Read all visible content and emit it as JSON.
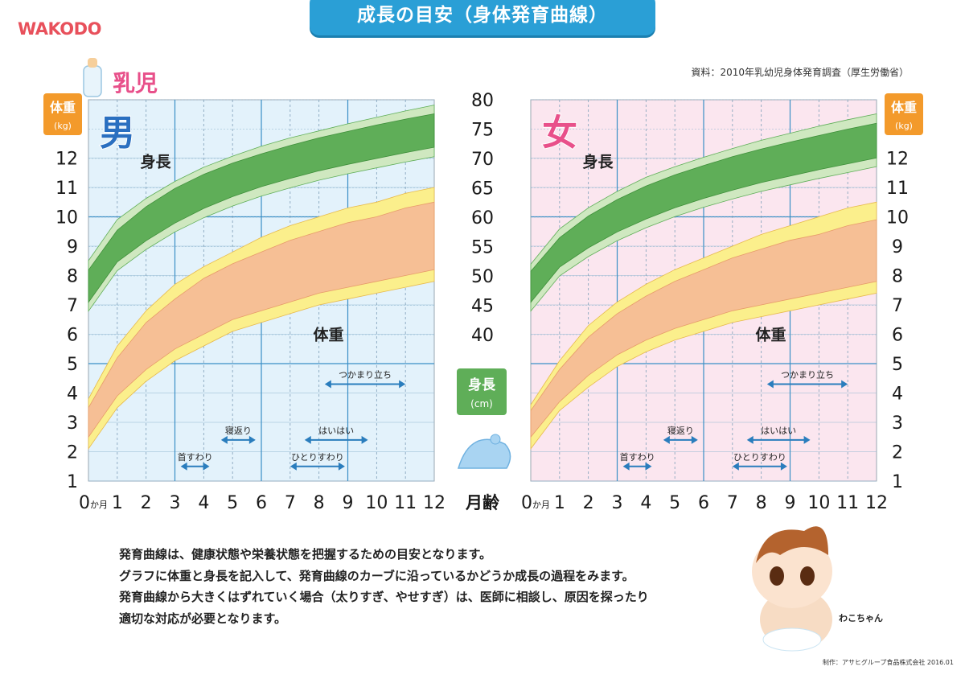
{
  "header": {
    "logo": "WAKODO",
    "title": "成長の目安（身体発育曲線）",
    "source": "資料：2010年乳幼児身体発育調査（厚生労働省）"
  },
  "section_label": "乳児",
  "axes": {
    "weight_title": "体重",
    "weight_unit": "(kg)",
    "height_title": "身長",
    "height_unit": "(cm)",
    "month_title": "月齢",
    "month_zero_suffix": "か月"
  },
  "colors": {
    "boy_bg": "#e3f2fb",
    "girl_bg": "#fbe6ef",
    "height_outer": "#cfe8c0",
    "height_inner": "#5fae58",
    "weight_outer": "#fbef8c",
    "weight_inner": "#f6bf95",
    "grid_major": "#3a8fc6",
    "milestone_arrow": "#2a7dbd"
  },
  "chart_data": [
    {
      "type": "area",
      "panel": "男",
      "x": [
        0,
        1,
        2,
        3,
        4,
        5,
        6,
        7,
        8,
        9,
        10,
        11,
        12
      ],
      "xlim": [
        0,
        12
      ],
      "xticks": [
        "0",
        "1",
        "2",
        "3",
        "4",
        "5",
        "6",
        "7",
        "8",
        "9",
        "10",
        "11",
        "12"
      ],
      "height_axis": {
        "label": "身長",
        "unit": "cm",
        "ylim": [
          40,
          80
        ],
        "ticks": [
          40,
          45,
          50,
          55,
          60,
          65,
          70,
          75,
          80
        ]
      },
      "weight_axis": {
        "label": "体重",
        "unit": "kg",
        "ylim": [
          1,
          13
        ],
        "ticks": [
          1,
          2,
          3,
          4,
          5,
          6,
          7,
          8,
          9,
          10,
          11,
          12
        ]
      },
      "series": [
        {
          "name": "身長",
          "p3": [
            44.0,
            50.9,
            54.5,
            57.5,
            59.9,
            61.9,
            63.6,
            65.0,
            66.3,
            67.4,
            68.4,
            69.4,
            70.3
          ],
          "p10": [
            45.5,
            52.4,
            56.0,
            59.0,
            61.5,
            63.5,
            65.2,
            66.6,
            67.9,
            69.0,
            70.0,
            71.0,
            71.9
          ],
          "p90": [
            51.0,
            57.8,
            61.8,
            64.9,
            67.3,
            69.2,
            70.8,
            72.2,
            73.5,
            74.6,
            75.7,
            76.7,
            77.6
          ],
          "p97": [
            52.6,
            59.6,
            63.2,
            66.1,
            68.5,
            70.4,
            72.1,
            73.5,
            74.7,
            75.9,
            77.0,
            78.1,
            79.1
          ]
        },
        {
          "name": "体重",
          "p3": [
            2.1,
            3.5,
            4.4,
            5.1,
            5.6,
            6.1,
            6.4,
            6.7,
            7.0,
            7.2,
            7.4,
            7.6,
            7.8
          ],
          "p10": [
            2.5,
            3.9,
            4.8,
            5.5,
            6.0,
            6.5,
            6.8,
            7.1,
            7.4,
            7.6,
            7.8,
            8.0,
            8.2
          ],
          "p90": [
            3.5,
            5.2,
            6.4,
            7.2,
            7.9,
            8.4,
            8.8,
            9.2,
            9.5,
            9.8,
            10.0,
            10.3,
            10.5
          ],
          "p97": [
            3.8,
            5.6,
            6.8,
            7.7,
            8.3,
            8.8,
            9.3,
            9.7,
            10.0,
            10.3,
            10.5,
            10.8,
            11.0
          ]
        }
      ],
      "annotations": [
        {
          "text": "身長",
          "x": 1.8,
          "y_height": 69.5
        },
        {
          "text": "体重",
          "x": 7.8,
          "y_weight": 6.0
        }
      ],
      "milestones": [
        {
          "label": "首すわり",
          "from": 3.2,
          "to": 4.2,
          "y_weight": 1.5
        },
        {
          "label": "寝返り",
          "from": 4.6,
          "to": 5.8,
          "y_weight": 2.4
        },
        {
          "label": "ひとりすわり",
          "from": 7.0,
          "to": 8.9,
          "y_weight": 1.5
        },
        {
          "label": "はいはい",
          "from": 7.5,
          "to": 9.7,
          "y_weight": 2.4
        },
        {
          "label": "つかまり立ち",
          "from": 8.2,
          "to": 11.0,
          "y_weight": 4.3
        }
      ]
    },
    {
      "type": "area",
      "panel": "女",
      "x": [
        0,
        1,
        2,
        3,
        4,
        5,
        6,
        7,
        8,
        9,
        10,
        11,
        12
      ],
      "xlim": [
        0,
        12
      ],
      "xticks": [
        "0",
        "1",
        "2",
        "3",
        "4",
        "5",
        "6",
        "7",
        "8",
        "9",
        "10",
        "11",
        "12"
      ],
      "height_axis": {
        "label": "身長",
        "unit": "cm",
        "ylim": [
          40,
          80
        ],
        "ticks": [
          40,
          45,
          50,
          55,
          60,
          65,
          70,
          75,
          80
        ]
      },
      "weight_axis": {
        "label": "体重",
        "unit": "kg",
        "ylim": [
          1,
          13
        ],
        "ticks": [
          1,
          2,
          3,
          4,
          5,
          6,
          7,
          8,
          9,
          10,
          11,
          12
        ]
      },
      "series": [
        {
          "name": "身長",
          "p3": [
            44.0,
            50.0,
            53.3,
            56.0,
            58.2,
            60.1,
            61.7,
            63.1,
            64.4,
            65.5,
            66.6,
            67.6,
            68.6
          ],
          "p10": [
            45.5,
            51.5,
            54.8,
            57.5,
            59.7,
            61.6,
            63.2,
            64.6,
            65.9,
            67.0,
            68.1,
            69.1,
            70.1
          ],
          "p90": [
            50.8,
            56.5,
            60.2,
            63.0,
            65.3,
            67.2,
            68.8,
            70.3,
            71.6,
            72.8,
            73.9,
            75.0,
            76.0
          ],
          "p97": [
            52.0,
            58.0,
            61.6,
            64.4,
            66.8,
            68.6,
            70.2,
            71.7,
            73.1,
            74.3,
            75.5,
            76.6,
            77.6
          ]
        },
        {
          "name": "体重",
          "p3": [
            2.1,
            3.4,
            4.2,
            4.9,
            5.4,
            5.8,
            6.1,
            6.4,
            6.6,
            6.8,
            7.0,
            7.2,
            7.4
          ],
          "p10": [
            2.5,
            3.7,
            4.6,
            5.3,
            5.8,
            6.2,
            6.5,
            6.8,
            7.0,
            7.2,
            7.4,
            7.6,
            7.8
          ],
          "p90": [
            3.4,
            4.8,
            5.9,
            6.7,
            7.3,
            7.8,
            8.2,
            8.6,
            8.9,
            9.2,
            9.4,
            9.7,
            9.9
          ],
          "p97": [
            3.6,
            5.1,
            6.3,
            7.1,
            7.7,
            8.2,
            8.6,
            9.0,
            9.4,
            9.7,
            10.0,
            10.3,
            10.5
          ]
        }
      ],
      "annotations": [
        {
          "text": "身長",
          "x": 1.8,
          "y_height": 69.5
        },
        {
          "text": "体重",
          "x": 7.8,
          "y_weight": 6.0
        }
      ],
      "milestones": [
        {
          "label": "首すわり",
          "from": 3.2,
          "to": 4.2,
          "y_weight": 1.5
        },
        {
          "label": "寝返り",
          "from": 4.6,
          "to": 5.8,
          "y_weight": 2.4
        },
        {
          "label": "ひとりすわり",
          "from": 7.0,
          "to": 8.9,
          "y_weight": 1.5
        },
        {
          "label": "はいはい",
          "from": 7.5,
          "to": 9.7,
          "y_weight": 2.4
        },
        {
          "label": "つかまり立ち",
          "from": 8.2,
          "to": 11.0,
          "y_weight": 4.3
        }
      ]
    }
  ],
  "description": [
    "発育曲線は、健康状態や栄養状態を把握するための目安となります。",
    "グラフに体重と身長を記入して、発育曲線のカーブに沿っているかどうか成長の過程をみます。",
    "発育曲線から大きくはずれていく場合（太りすぎ、やせすぎ）は、医師に相談し、原因を探ったり",
    "適切な対応が必要となります。"
  ],
  "mascot_name": "わこちゃん",
  "credit": "制作：アサヒグループ食品株式会社 2016.01"
}
